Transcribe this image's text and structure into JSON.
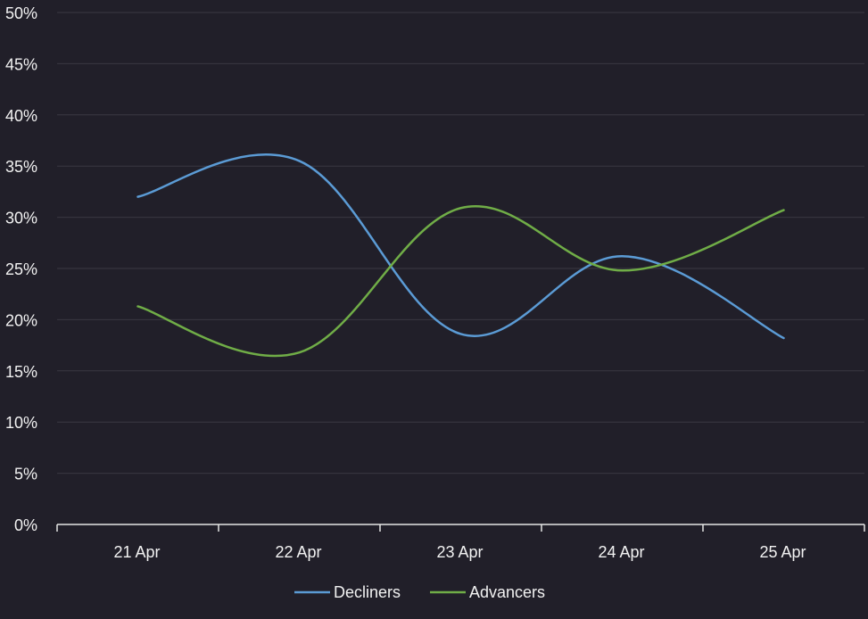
{
  "chart_data": {
    "type": "line",
    "title": "",
    "xlabel": "",
    "ylabel": "",
    "categories": [
      "21 Apr",
      "22 Apr",
      "23 Apr",
      "24 Apr",
      "25 Apr"
    ],
    "series": [
      {
        "name": "Decliners",
        "values": [
          32.0,
          35.5,
          18.6,
          26.2,
          18.2
        ],
        "color": "#5b9bd5"
      },
      {
        "name": "Advancers",
        "values": [
          21.3,
          16.8,
          30.9,
          24.8,
          30.7
        ],
        "color": "#70ad47"
      }
    ],
    "ylim": [
      0,
      50
    ],
    "y_ticks": [
      "0%",
      "5%",
      "10%",
      "15%",
      "20%",
      "25%",
      "30%",
      "35%",
      "40%",
      "45%",
      "50%"
    ],
    "y_tick_values": [
      0,
      5,
      10,
      15,
      20,
      25,
      30,
      35,
      40,
      45,
      50
    ],
    "y_unit": "%",
    "grid": true,
    "legend": "bottom-center",
    "colors": {
      "background": "#211f29",
      "grid": "#3a3842",
      "axis": "#e6e6e6",
      "text": "#f2f2f2"
    }
  }
}
